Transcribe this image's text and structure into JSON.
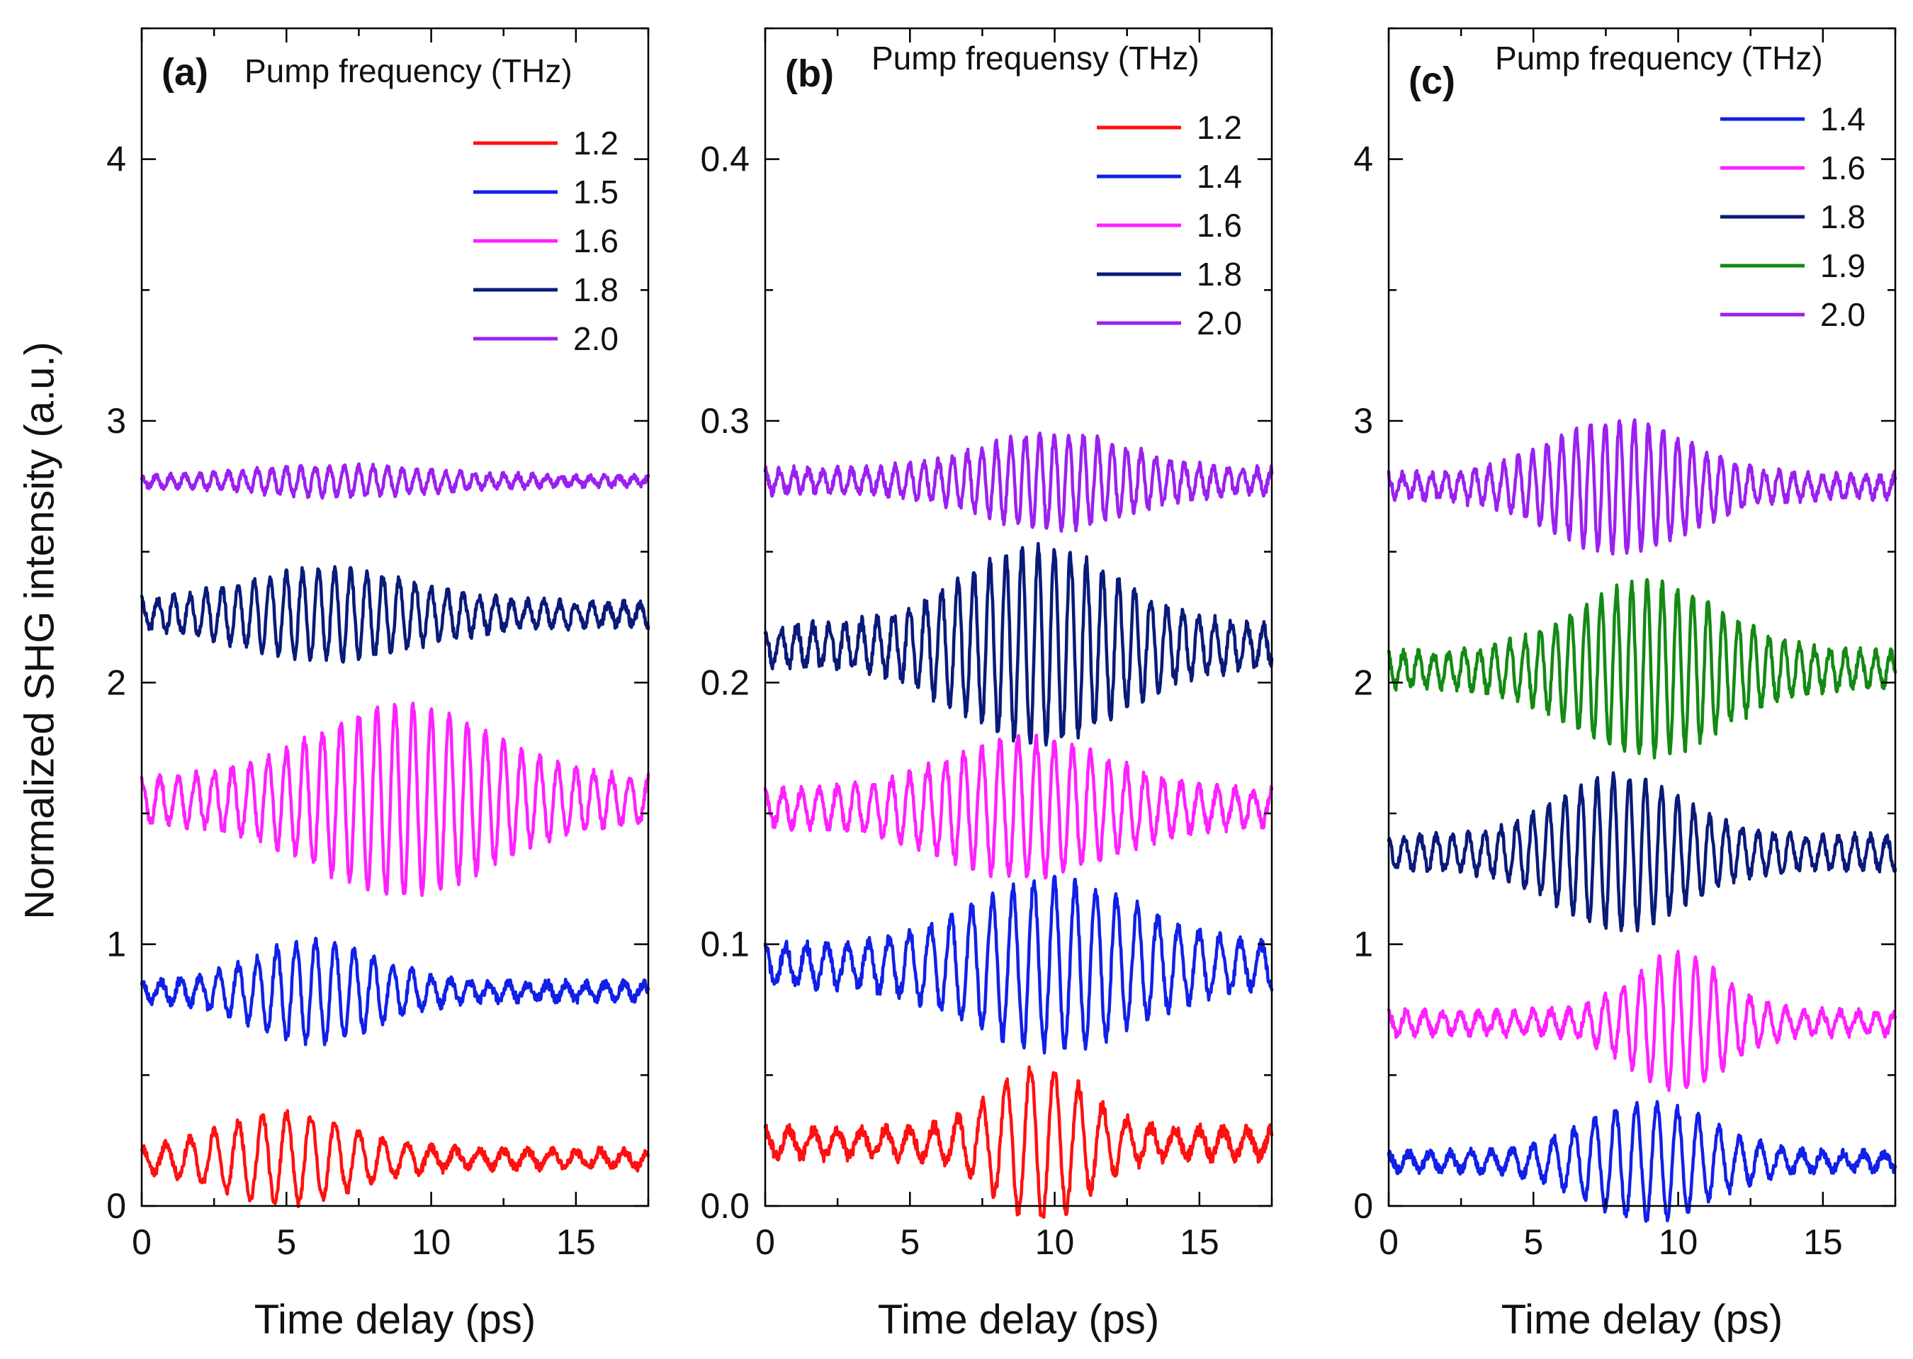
{
  "figure": {
    "ylabel": "Normalized SHG intensity (a.u.)"
  },
  "colors": {
    "red": "#ff1010",
    "blue": "#1020e8",
    "magenta": "#ff20ff",
    "navy": "#0a1a7a",
    "green": "#138a13",
    "violet": "#9b20f0"
  },
  "chart_data": [
    {
      "type": "line",
      "panel": "(a)",
      "title": "Pump frequency (THz)",
      "xlabel": "Time delay (ps)",
      "ylabel": "Normalized SHG intensity (a.u.)",
      "xlim": [
        0,
        17.5
      ],
      "ylim": [
        0,
        4.5
      ],
      "xticks": [
        0,
        5,
        10,
        15
      ],
      "xtick_labels": [
        "0",
        "5",
        "10",
        "15"
      ],
      "yticks": [
        0,
        1,
        2,
        3,
        4
      ],
      "ytick_labels": [
        "0",
        "1",
        "2",
        "3",
        "4"
      ],
      "series": [
        {
          "name": "1.2",
          "color": "#ff1010",
          "baseline": 0.18,
          "center": 5.0,
          "width": 3.2,
          "amp": 0.14,
          "tail": 0.03,
          "freq": 1.2,
          "noise": 0.018,
          "seed": 11
        },
        {
          "name": "1.5",
          "color": "#1020e8",
          "baseline": 0.82,
          "center": 6.0,
          "width": 3.0,
          "amp": 0.16,
          "tail": 0.03,
          "freq": 1.5,
          "noise": 0.018,
          "seed": 23
        },
        {
          "name": "1.6",
          "color": "#ff20ff",
          "baseline": 1.55,
          "center": 9.0,
          "width": 4.2,
          "amp": 0.28,
          "tail": 0.08,
          "freq": 1.6,
          "noise": 0.02,
          "seed": 37
        },
        {
          "name": "1.8",
          "color": "#0a1a7a",
          "baseline": 2.26,
          "center": 6.5,
          "width": 4.2,
          "amp": 0.13,
          "tail": 0.04,
          "freq": 1.8,
          "noise": 0.018,
          "seed": 41
        },
        {
          "name": "2.0",
          "color": "#9b20f0",
          "baseline": 2.77,
          "center": 7.0,
          "width": 4.5,
          "amp": 0.04,
          "tail": 0.015,
          "freq": 2.0,
          "noise": 0.012,
          "seed": 53
        }
      ]
    },
    {
      "type": "line",
      "panel": "(b)",
      "title": "Pump frequensy (THz)",
      "xlabel": "Time delay (ps)",
      "xlim": [
        0,
        17.5
      ],
      "ylim": [
        0,
        0.45
      ],
      "xticks": [
        0,
        5,
        10,
        15
      ],
      "xtick_labels": [
        "0",
        "5",
        "10",
        "15"
      ],
      "yticks": [
        0,
        0.1,
        0.2,
        0.3,
        0.4
      ],
      "ytick_labels": [
        "0.0",
        "0.1",
        "0.2",
        "0.3",
        "0.4"
      ],
      "series": [
        {
          "name": "1.2",
          "color": "#ff1010",
          "baseline": 0.024,
          "center": 9.5,
          "width": 2.2,
          "amp": 0.024,
          "tail": 0.005,
          "freq": 1.2,
          "noise": 0.0025,
          "seed": 61
        },
        {
          "name": "1.4",
          "color": "#1020e8",
          "baseline": 0.092,
          "center": 10.0,
          "width": 4.0,
          "amp": 0.025,
          "tail": 0.007,
          "freq": 1.4,
          "noise": 0.0025,
          "seed": 71
        },
        {
          "name": "1.6",
          "color": "#ff20ff",
          "baseline": 0.152,
          "center": 9.0,
          "width": 4.0,
          "amp": 0.02,
          "tail": 0.006,
          "freq": 1.6,
          "noise": 0.0022,
          "seed": 83
        },
        {
          "name": "1.8",
          "color": "#0a1a7a",
          "baseline": 0.214,
          "center": 9.5,
          "width": 3.8,
          "amp": 0.03,
          "tail": 0.007,
          "freq": 1.8,
          "noise": 0.0025,
          "seed": 97
        },
        {
          "name": "2.0",
          "color": "#9b20f0",
          "baseline": 0.277,
          "center": 10.0,
          "width": 3.5,
          "amp": 0.014,
          "tail": 0.004,
          "freq": 2.0,
          "noise": 0.0018,
          "seed": 101
        }
      ]
    },
    {
      "type": "line",
      "panel": "(c)",
      "title": "Pump frequency (THz)",
      "xlabel": "Time delay (ps)",
      "xlim": [
        0,
        17.5
      ],
      "ylim": [
        0,
        4.5
      ],
      "xticks": [
        0,
        5,
        10,
        15
      ],
      "xtick_labels": [
        "0",
        "5",
        "10",
        "15"
      ],
      "yticks": [
        0,
        1,
        2,
        3,
        4
      ],
      "ytick_labels": [
        "0",
        "1",
        "2",
        "3",
        "4"
      ],
      "series": [
        {
          "name": "1.4",
          "color": "#1020e8",
          "baseline": 0.17,
          "center": 9.0,
          "width": 3.0,
          "amp": 0.19,
          "tail": 0.03,
          "freq": 1.4,
          "noise": 0.018,
          "seed": 113
        },
        {
          "name": "1.6",
          "color": "#ff20ff",
          "baseline": 0.7,
          "center": 10.0,
          "width": 2.2,
          "amp": 0.22,
          "tail": 0.04,
          "freq": 1.6,
          "noise": 0.018,
          "seed": 127
        },
        {
          "name": "1.8",
          "color": "#0a1a7a",
          "baseline": 1.35,
          "center": 8.0,
          "width": 3.0,
          "amp": 0.23,
          "tail": 0.06,
          "freq": 1.8,
          "noise": 0.018,
          "seed": 131
        },
        {
          "name": "1.9",
          "color": "#138a13",
          "baseline": 2.05,
          "center": 9.0,
          "width": 3.5,
          "amp": 0.27,
          "tail": 0.06,
          "freq": 1.9,
          "noise": 0.02,
          "seed": 149
        },
        {
          "name": "2.0",
          "color": "#9b20f0",
          "baseline": 2.75,
          "center": 8.0,
          "width": 3.3,
          "amp": 0.21,
          "tail": 0.04,
          "freq": 2.0,
          "noise": 0.018,
          "seed": 151
        }
      ]
    }
  ]
}
